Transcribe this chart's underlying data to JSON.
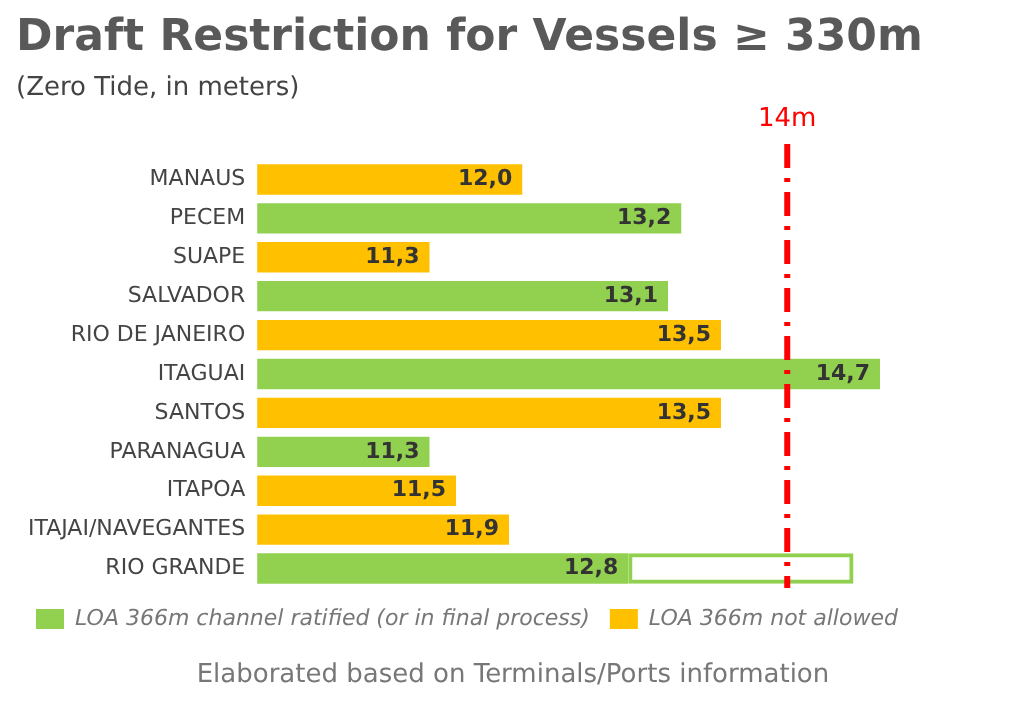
{
  "chart_data": {
    "type": "bar",
    "orientation": "horizontal",
    "stacked": true,
    "title": "Draft Restriction for Vessels ≥ 330m",
    "subtitle": "(Zero Tide, in meters)",
    "categories": [
      "MANAUS",
      "PECEM",
      "SUAPE",
      "SALVADOR",
      "RIO DE JANEIRO",
      "ITAGUAI",
      "SANTOS",
      "PARANAGUA",
      "ITAPOA",
      "ITAJAI/NAVEGANTES",
      "RIO GRANDE"
    ],
    "series": [
      {
        "name": "LOA 366m channel ratified (or in final process)",
        "color": "#92d050",
        "values": [
          null,
          13.2,
          null,
          13.1,
          null,
          14.7,
          null,
          11.3,
          null,
          null,
          12.8
        ],
        "value_labels": [
          null,
          "13,2",
          null,
          "13,1",
          null,
          "14,7",
          null,
          "11,3",
          null,
          null,
          "12,8"
        ]
      },
      {
        "name": "LOA 366m not allowed",
        "color": "#ffc000",
        "values": [
          12.0,
          null,
          11.3,
          null,
          13.5,
          null,
          13.5,
          null,
          11.5,
          11.9,
          null
        ],
        "value_labels": [
          "12,0",
          null,
          "11,3",
          null,
          "13,5",
          null,
          "13,5",
          null,
          "11,5",
          "11,9",
          null
        ]
      },
      {
        "color": "#92d050",
        "line_style": "dashed",
        "values": [
          null,
          null,
          null,
          null,
          null,
          null,
          null,
          null,
          null,
          null,
          1.7
        ]
      }
    ],
    "tick_labels": "y",
    "grid": false,
    "legend": "bottom",
    "ref_lines": [
      {
        "axis": "x",
        "value": 14,
        "label": "14m",
        "color": "#ff0000",
        "line_style": "dashed"
      }
    ],
    "annotations": [
      "Elaborated based on Terminals/Ports information"
    ]
  }
}
